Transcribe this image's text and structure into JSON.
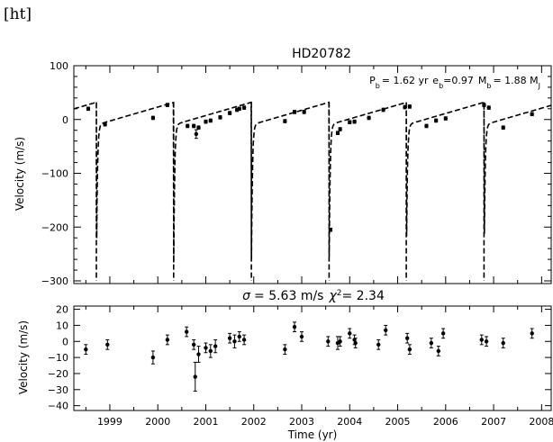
{
  "page_label": "[ht]",
  "chart_data": [
    {
      "type": "scatter",
      "title": "HD20782",
      "ylabel": "Velocity (m/s)",
      "xlabel": "",
      "xlim": [
        1998.25,
        2008.2
      ],
      "ylim": [
        -305,
        100
      ],
      "yticks": [
        100,
        0,
        -100,
        -200,
        -300
      ],
      "ytick_labels": [
        "100",
        "0",
        "−100",
        "−200",
        "−300"
      ],
      "grid": false,
      "legend": "none",
      "annotation": {
        "pb_label": "P",
        "pb_sub": "b",
        "pb_value": "= 1.62 yr",
        "eb_label": "e",
        "eb_sub": "b",
        "eb_value": "=0.97",
        "mb_label": "M",
        "mb_sub": "b",
        "mb_value": "= 1.88 M",
        "mj_sub": "J"
      },
      "model": {
        "style": "dashed",
        "period_yr": 1.62,
        "min_times": [
          1998.72,
          2000.33,
          2001.95,
          2003.57,
          2005.18,
          2006.8
        ],
        "min_velocity": -300,
        "max_velocity": 32
      },
      "points": [
        {
          "x": 1998.55,
          "y": 20,
          "err": 3
        },
        {
          "x": 1998.9,
          "y": -9,
          "err": 3
        },
        {
          "x": 1999.9,
          "y": 3,
          "err": 3
        },
        {
          "x": 2000.2,
          "y": 27,
          "err": 3
        },
        {
          "x": 2000.62,
          "y": -12,
          "err": 3
        },
        {
          "x": 2000.75,
          "y": -12,
          "err": 3
        },
        {
          "x": 2000.8,
          "y": -27,
          "err": 8
        },
        {
          "x": 2000.85,
          "y": -15,
          "err": 3
        },
        {
          "x": 2001.0,
          "y": -4,
          "err": 3
        },
        {
          "x": 2001.1,
          "y": -2,
          "err": 3
        },
        {
          "x": 2001.3,
          "y": 4,
          "err": 3
        },
        {
          "x": 2001.5,
          "y": 12,
          "err": 3
        },
        {
          "x": 2001.65,
          "y": 18,
          "err": 3
        },
        {
          "x": 2001.7,
          "y": 20,
          "err": 3
        },
        {
          "x": 2001.8,
          "y": 22,
          "err": 3
        },
        {
          "x": 2002.65,
          "y": -3,
          "err": 3
        },
        {
          "x": 2002.85,
          "y": 14,
          "err": 3
        },
        {
          "x": 2003.05,
          "y": 14,
          "err": 3
        },
        {
          "x": 2003.6,
          "y": -205,
          "err": 3
        },
        {
          "x": 2003.75,
          "y": -25,
          "err": 3
        },
        {
          "x": 2003.8,
          "y": -18,
          "err": 3
        },
        {
          "x": 2004.0,
          "y": -5,
          "err": 3
        },
        {
          "x": 2004.1,
          "y": -4,
          "err": 3
        },
        {
          "x": 2004.4,
          "y": 3,
          "err": 3
        },
        {
          "x": 2004.7,
          "y": 18,
          "err": 3
        },
        {
          "x": 2005.15,
          "y": 23,
          "err": 3
        },
        {
          "x": 2005.25,
          "y": 24,
          "err": 3
        },
        {
          "x": 2005.6,
          "y": -12,
          "err": 3
        },
        {
          "x": 2005.8,
          "y": -2,
          "err": 3
        },
        {
          "x": 2006.0,
          "y": 2,
          "err": 3
        },
        {
          "x": 2006.8,
          "y": 27,
          "err": 3
        },
        {
          "x": 2006.9,
          "y": 22,
          "err": 3
        },
        {
          "x": 2007.2,
          "y": -15,
          "err": 3
        },
        {
          "x": 2007.8,
          "y": 10,
          "err": 3
        }
      ]
    },
    {
      "type": "scatter",
      "title_parts": {
        "sigma": "σ",
        "sigma_value": "= 5.63 m/s",
        "chi": "χ",
        "chi_sup": "2",
        "chi_value": "= 2.34"
      },
      "ylabel": "Velocity (m/s)",
      "xlabel": "Time (yr)",
      "xlim": [
        1998.25,
        2008.2
      ],
      "ylim": [
        -43,
        22
      ],
      "yticks": [
        20,
        10,
        0,
        -10,
        -20,
        -30,
        -40
      ],
      "ytick_labels": [
        "20",
        "10",
        "0",
        "−10",
        "−20",
        "−30",
        "−40"
      ],
      "xticks": [
        1999,
        2000,
        2001,
        2002,
        2003,
        2004,
        2005,
        2006,
        2007,
        2008
      ],
      "xtick_labels": [
        "1999",
        "2000",
        "2001",
        "2002",
        "2003",
        "2004",
        "2005",
        "2006",
        "2007",
        "2008"
      ],
      "grid": false,
      "legend": "none",
      "points": [
        {
          "x": 1998.5,
          "y": -5,
          "err": 3
        },
        {
          "x": 1998.95,
          "y": -2,
          "err": 3
        },
        {
          "x": 1999.9,
          "y": -10,
          "err": 4
        },
        {
          "x": 2000.2,
          "y": 1,
          "err": 3
        },
        {
          "x": 2000.6,
          "y": 6,
          "err": 3
        },
        {
          "x": 2000.75,
          "y": -2,
          "err": 3
        },
        {
          "x": 2000.78,
          "y": -22,
          "err": 9
        },
        {
          "x": 2000.85,
          "y": -8,
          "err": 5
        },
        {
          "x": 2001.0,
          "y": -4,
          "err": 3
        },
        {
          "x": 2001.1,
          "y": -6,
          "err": 4
        },
        {
          "x": 2001.2,
          "y": -3,
          "err": 4
        },
        {
          "x": 2001.5,
          "y": 2,
          "err": 3
        },
        {
          "x": 2001.6,
          "y": 0,
          "err": 4
        },
        {
          "x": 2001.7,
          "y": 3,
          "err": 3
        },
        {
          "x": 2001.8,
          "y": 1,
          "err": 3
        },
        {
          "x": 2002.65,
          "y": -5,
          "err": 3
        },
        {
          "x": 2002.85,
          "y": 9,
          "err": 3
        },
        {
          "x": 2003.0,
          "y": 3,
          "err": 3
        },
        {
          "x": 2003.55,
          "y": 0,
          "err": 3
        },
        {
          "x": 2003.75,
          "y": -1,
          "err": 4
        },
        {
          "x": 2003.8,
          "y": 0,
          "err": 3
        },
        {
          "x": 2004.0,
          "y": 5,
          "err": 3
        },
        {
          "x": 2004.1,
          "y": 1,
          "err": 3
        },
        {
          "x": 2004.12,
          "y": -1,
          "err": 3
        },
        {
          "x": 2004.6,
          "y": -2,
          "err": 3
        },
        {
          "x": 2004.75,
          "y": 7,
          "err": 3
        },
        {
          "x": 2005.2,
          "y": 2,
          "err": 3
        },
        {
          "x": 2005.25,
          "y": -5,
          "err": 3
        },
        {
          "x": 2005.7,
          "y": -1,
          "err": 3
        },
        {
          "x": 2005.85,
          "y": -6,
          "err": 3
        },
        {
          "x": 2005.95,
          "y": 5,
          "err": 3
        },
        {
          "x": 2006.75,
          "y": 1,
          "err": 3
        },
        {
          "x": 2006.85,
          "y": 0,
          "err": 3
        },
        {
          "x": 2007.2,
          "y": -1,
          "err": 3
        },
        {
          "x": 2007.8,
          "y": 5,
          "err": 3
        }
      ]
    }
  ]
}
